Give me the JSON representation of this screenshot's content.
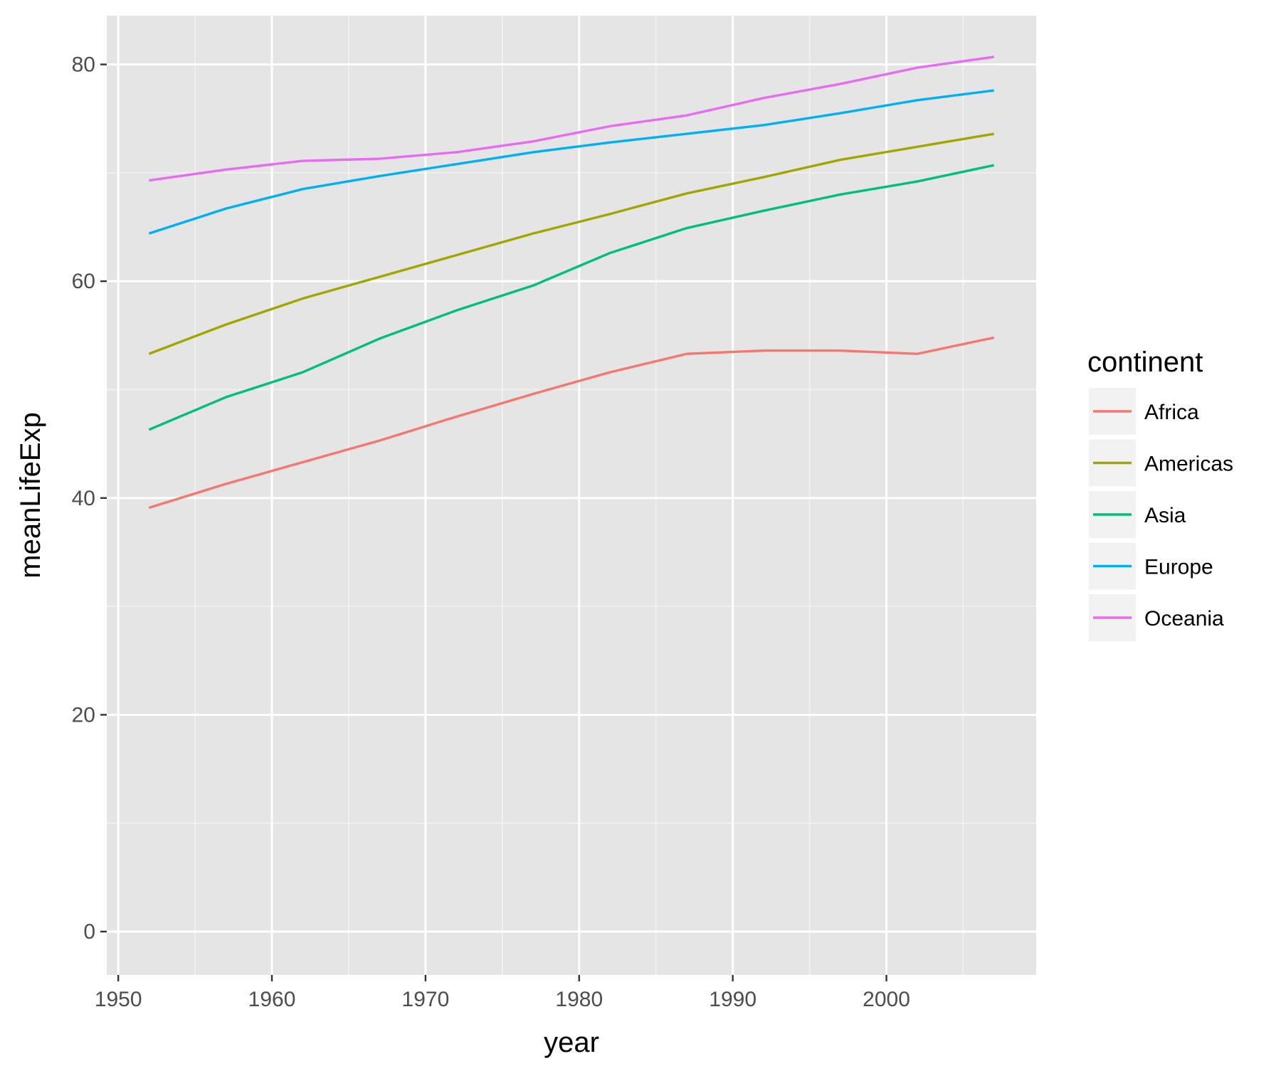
{
  "chart_data": {
    "type": "line",
    "title": "",
    "xlabel": "year",
    "ylabel": "meanLifeExp",
    "x": [
      1952,
      1957,
      1962,
      1967,
      1972,
      1977,
      1982,
      1987,
      1992,
      1997,
      2002,
      2007
    ],
    "xlim": [
      1949.25,
      2009.75
    ],
    "ylim": [
      -4,
      84.5
    ],
    "x_ticks": [
      1950,
      1960,
      1970,
      1980,
      1990,
      2000
    ],
    "x_tick_labels": [
      "1950",
      "1960",
      "1970",
      "1980",
      "1990",
      "2000"
    ],
    "y_ticks": [
      0,
      20,
      40,
      60,
      80
    ],
    "y_tick_labels": [
      "0",
      "20",
      "40",
      "60",
      "80"
    ],
    "grid": true,
    "background": "#e5e5e5",
    "legend": {
      "title": "continent",
      "placement": "right"
    },
    "series": [
      {
        "name": "Africa",
        "color": "#f8766d",
        "values": [
          39.1,
          41.3,
          43.3,
          45.3,
          47.5,
          49.6,
          51.6,
          53.3,
          53.6,
          53.6,
          53.3,
          54.8
        ]
      },
      {
        "name": "Americas",
        "color": "#a3a500",
        "values": [
          53.3,
          56.0,
          58.4,
          60.4,
          62.4,
          64.4,
          66.2,
          68.1,
          69.6,
          71.2,
          72.4,
          73.6
        ]
      },
      {
        "name": "Asia",
        "color": "#00bf7d",
        "values": [
          46.3,
          49.3,
          51.6,
          54.7,
          57.3,
          59.6,
          62.6,
          64.9,
          66.5,
          68.0,
          69.2,
          70.7
        ]
      },
      {
        "name": "Europe",
        "color": "#00b0f6",
        "values": [
          64.4,
          66.7,
          68.5,
          69.7,
          70.8,
          71.9,
          72.8,
          73.6,
          74.4,
          75.5,
          76.7,
          77.6
        ]
      },
      {
        "name": "Oceania",
        "color": "#e76bf3",
        "values": [
          69.3,
          70.3,
          71.1,
          71.3,
          71.9,
          72.9,
          74.3,
          75.3,
          76.9,
          78.2,
          79.7,
          80.7
        ]
      }
    ]
  }
}
